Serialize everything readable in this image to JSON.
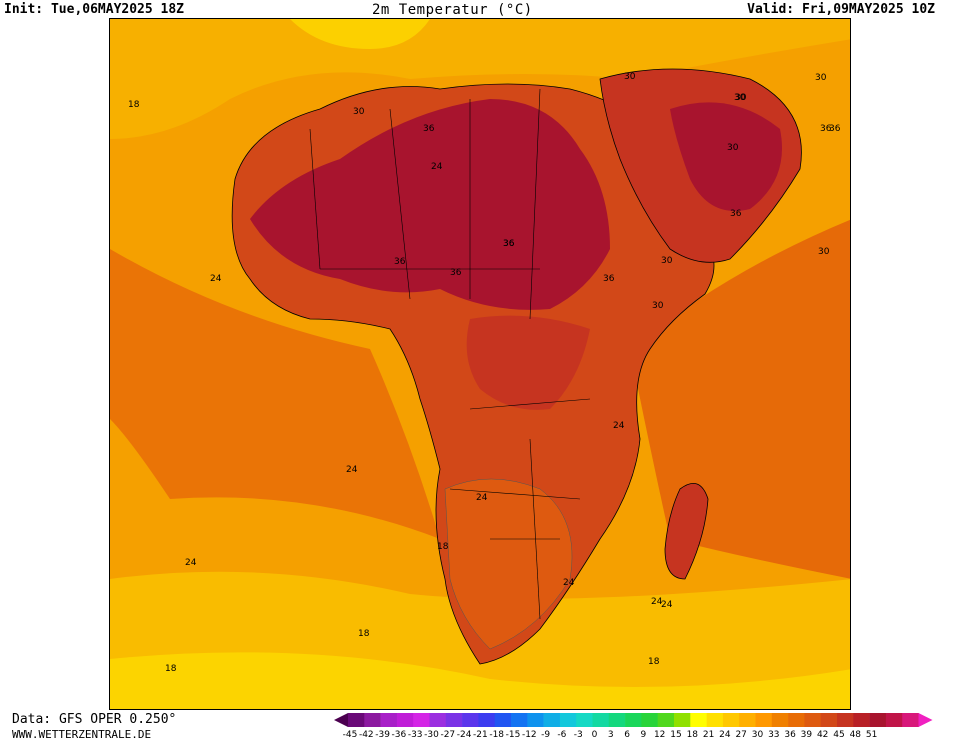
{
  "header": {
    "init": "Init: Tue,06MAY2025 18Z",
    "title": "2m Temperatur (°C)",
    "valid": "Valid: Fri,09MAY2025 10Z"
  },
  "footer": {
    "source": "Data: GFS OPER 0.250°",
    "website": "WWW.WETTERZENTRALE.DE"
  },
  "map": {
    "region": "Africa",
    "contour_labels": [
      {
        "text": "18"
      },
      {
        "text": "30"
      },
      {
        "text": "36"
      },
      {
        "text": "24"
      },
      {
        "text": "30"
      },
      {
        "text": "30"
      },
      {
        "text": "30"
      },
      {
        "text": "36"
      },
      {
        "text": "36"
      },
      {
        "text": "36"
      },
      {
        "text": "36"
      },
      {
        "text": "36"
      },
      {
        "text": "30"
      },
      {
        "text": "30"
      },
      {
        "text": "24"
      },
      {
        "text": "24"
      },
      {
        "text": "30"
      },
      {
        "text": "30"
      },
      {
        "text": "24"
      },
      {
        "text": "24"
      },
      {
        "text": "24"
      },
      {
        "text": "18"
      },
      {
        "text": "24"
      },
      {
        "text": "24"
      },
      {
        "text": "24"
      },
      {
        "text": "18"
      },
      {
        "text": "18"
      },
      {
        "text": "18"
      },
      {
        "text": "36"
      },
      {
        "text": "36"
      },
      {
        "text": "30"
      },
      {
        "text": "36"
      }
    ]
  },
  "colorbar": {
    "colors": [
      "#4b0050",
      "#6a0a78",
      "#8c1aa0",
      "#a820c8",
      "#c01ed8",
      "#d426e6",
      "#9b2fe0",
      "#7a33e6",
      "#5b36ec",
      "#3c3cf0",
      "#2155f2",
      "#1473f2",
      "#0e92ee",
      "#10aee6",
      "#14c8dc",
      "#16d9c4",
      "#14d9a2",
      "#14d87e",
      "#1ad65a",
      "#28d43a",
      "#50d81e",
      "#90e000",
      "#fffe00",
      "#ffe000",
      "#ffc800",
      "#ffb000",
      "#ff9800",
      "#f08000",
      "#e86c06",
      "#de5a10",
      "#d24818",
      "#c63420",
      "#b82026",
      "#a8142e",
      "#c01448",
      "#d8187a",
      "#f020c0"
    ],
    "tick_labels": [
      "-45",
      "-42",
      "-39",
      "-36",
      "-33",
      "-30",
      "-27",
      "-24",
      "-21",
      "-18",
      "-15",
      "-12",
      "-9",
      "-6",
      "-3",
      "0",
      "3",
      "6",
      "9",
      "12",
      "15",
      "18",
      "21",
      "24",
      "27",
      "30",
      "33",
      "36",
      "39",
      "42",
      "45",
      "48",
      "51"
    ]
  }
}
